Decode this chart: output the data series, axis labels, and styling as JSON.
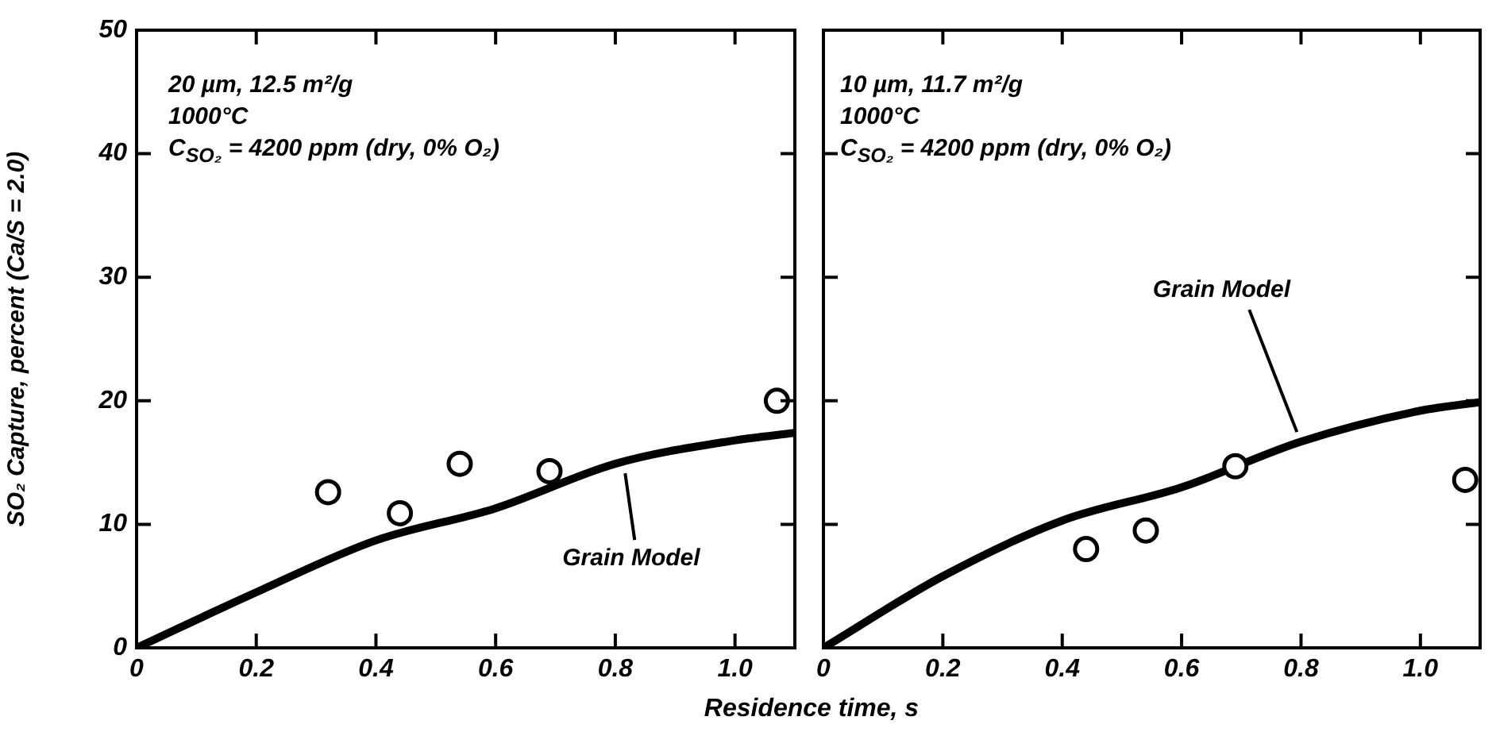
{
  "chart_data": [
    {
      "type": "scatter",
      "ylabel": "SO₂ Capture, percent (Ca/S = 2.0)",
      "xlabel": "Residence time, s",
      "xlim": [
        0,
        1.1
      ],
      "xticks": [
        0,
        0.2,
        0.4,
        0.6,
        0.8,
        {
          "value": 1,
          "label": "1.0"
        }
      ],
      "ylim": [
        0,
        50
      ],
      "yticks": [
        0,
        10,
        20,
        30,
        40,
        50
      ],
      "grid": false,
      "legend": false,
      "marker": "circle",
      "annotations": [
        "20 µm, 12.5 m²/g",
        "1000°C",
        "C$_{SO₂}$ = 4200 ppm (dry, 0% O₂)",
        {
          "text": "Grain Model",
          "x": 0.8,
          "y": 14.9
        }
      ],
      "series": [
        {
          "type": "scatter",
          "color": "#000000",
          "x": [
            0.32,
            0.44,
            0.54,
            0.69,
            1.07
          ],
          "values": [
            12.6,
            10.9,
            14.9,
            14.3,
            20.0
          ]
        },
        {
          "type": "line",
          "color": "#000000",
          "line_style": "solid",
          "marker": "none",
          "x": [
            0,
            0.2,
            0.4,
            0.6,
            0.8,
            1.0,
            1.1
          ],
          "values": [
            0,
            4.5,
            8.7,
            11.3,
            14.9,
            16.8,
            17.4
          ]
        }
      ]
    },
    {
      "type": "scatter",
      "xlim": [
        0,
        1.1
      ],
      "xticks": [
        0,
        0.2,
        0.4,
        0.6,
        0.8,
        {
          "value": 1,
          "label": "1.0"
        }
      ],
      "ylim": [
        0,
        50
      ],
      "yticks": [
        0,
        10,
        20,
        30,
        40,
        50
      ],
      "tick_labels": "x",
      "grid": false,
      "legend": false,
      "marker": "circle",
      "annotations": [
        "10 µm, 11.7 m²/g",
        "1000°C",
        "C$_{SO₂}$ = 4200 ppm (dry, 0% O₂)",
        {
          "text": "Grain Model",
          "x": 0.8,
          "y": 16.7
        }
      ],
      "series": [
        {
          "type": "scatter",
          "color": "#000000",
          "x": [
            0.44,
            0.54,
            0.69,
            1.075
          ],
          "values": [
            8.0,
            9.5,
            14.7,
            13.6
          ]
        },
        {
          "type": "line",
          "color": "#000000",
          "line_style": "solid",
          "marker": "none",
          "x": [
            0,
            0.2,
            0.4,
            0.6,
            0.8,
            1.0,
            1.1
          ],
          "values": [
            0,
            5.8,
            10.3,
            13.0,
            16.7,
            19.2,
            19.9
          ]
        }
      ]
    }
  ]
}
